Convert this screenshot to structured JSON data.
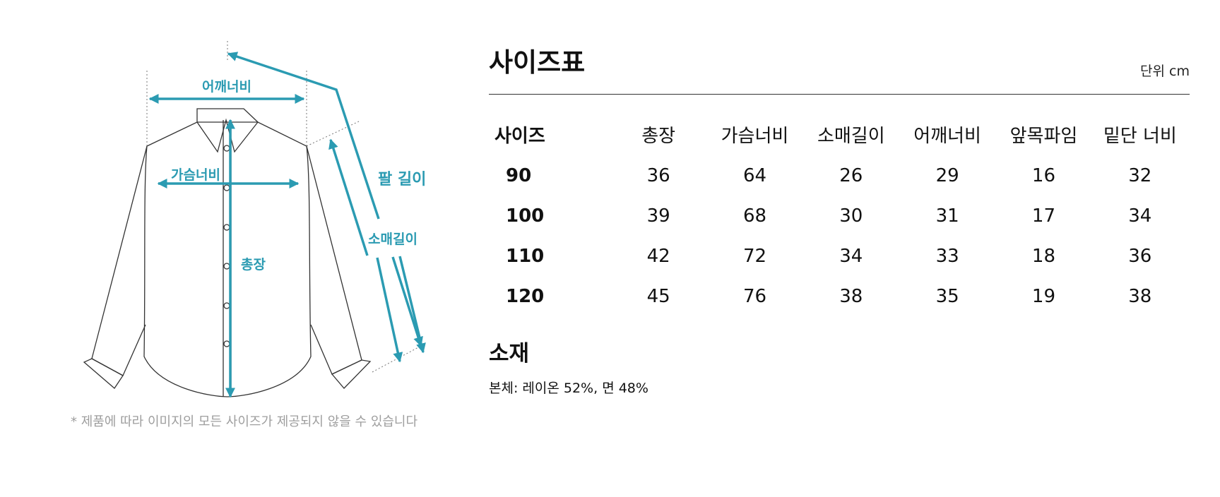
{
  "colors": {
    "accent": "#2b9bb2",
    "note": "#9e9e9e",
    "text": "#111111"
  },
  "diagram": {
    "labels": {
      "shoulder": "어깨너비",
      "chest": "가슴너비",
      "length": "총장",
      "arm": "팔 길이",
      "sleeve": "소매길이"
    },
    "note": "* 제품에 따라 이미지의 모든 사이즈가 제공되지 않을 수 있습니다"
  },
  "size_table": {
    "title": "사이즈표",
    "unit": "단위 cm",
    "headers": [
      "사이즈",
      "총장",
      "가슴너비",
      "소매길이",
      "어깨너비",
      "앞목파임",
      "밑단 너비"
    ],
    "rows": [
      [
        "90",
        "36",
        "64",
        "26",
        "29",
        "16",
        "32"
      ],
      [
        "100",
        "39",
        "68",
        "30",
        "31",
        "17",
        "34"
      ],
      [
        "110",
        "42",
        "72",
        "34",
        "33",
        "18",
        "36"
      ],
      [
        "120",
        "45",
        "76",
        "38",
        "35",
        "19",
        "38"
      ]
    ]
  },
  "material": {
    "title": "소재",
    "text": "본체: 레이온 52%, 면 48%"
  }
}
